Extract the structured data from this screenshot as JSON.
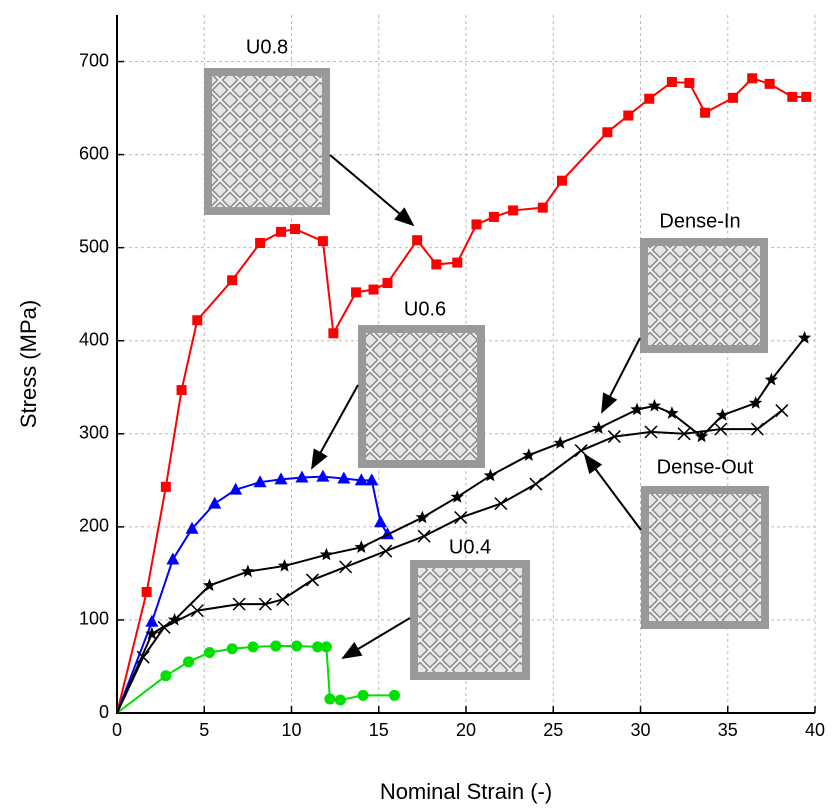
{
  "chart_data": {
    "type": "line",
    "x_label": "Nominal Strain (-)",
    "y_label": "Stress (MPa)",
    "xlim": [
      0,
      40
    ],
    "ylim": [
      0,
      750
    ],
    "xticks": [
      0,
      5,
      10,
      15,
      20,
      25,
      30,
      35,
      40
    ],
    "yticks": [
      0,
      100,
      200,
      300,
      400,
      500,
      600,
      700
    ],
    "grid": true,
    "series": [
      {
        "name": "U0.8",
        "color": "#ff0000",
        "marker": "square",
        "x": [
          0,
          1.7,
          2.8,
          3.7,
          4.6,
          6.6,
          8.2,
          9.4,
          10.2,
          11.8,
          12.4,
          13.7,
          14.7,
          15.5,
          17.2,
          18.3,
          19.5,
          20.6,
          21.6,
          22.7,
          24.4,
          25.5,
          28.1,
          29.3,
          30.5,
          31.8,
          32.8,
          33.7,
          35.3,
          36.4,
          37.4,
          38.7,
          39.5
        ],
        "values": [
          0,
          130,
          243,
          347,
          422,
          465,
          505,
          517,
          520,
          507,
          408,
          452,
          455,
          462,
          508,
          482,
          484,
          525,
          533,
          540,
          543,
          572,
          624,
          642,
          660,
          678,
          677,
          645,
          661,
          682,
          676,
          662,
          662
        ]
      },
      {
        "name": "U0.6",
        "color": "#0000ff",
        "marker": "triangle",
        "x": [
          0,
          2,
          3.2,
          4.3,
          5.6,
          6.8,
          8.2,
          9.4,
          10.6,
          11.8,
          13,
          14,
          14.6,
          15.1,
          15.5
        ],
        "values": [
          0,
          98,
          165,
          198,
          225,
          240,
          248,
          251,
          253,
          254,
          252,
          250,
          250,
          205,
          192
        ]
      },
      {
        "name": "U0.4",
        "color": "#00e000",
        "marker": "circle",
        "x": [
          0,
          2.8,
          4.1,
          5.3,
          6.6,
          7.8,
          9.1,
          10.3,
          11.5,
          12,
          12.2,
          12.8,
          14.1,
          15.9
        ],
        "values": [
          0,
          40,
          55,
          65,
          69,
          71,
          72,
          72,
          71,
          71,
          15,
          14,
          19,
          19
        ]
      },
      {
        "name": "Dense-In",
        "color": "#000000",
        "marker": "star",
        "x": [
          0,
          2,
          3.3,
          5.3,
          7.5,
          9.6,
          12,
          14,
          17.5,
          19.5,
          21.4,
          23.6,
          25.4,
          27.6,
          29.8,
          30.8,
          31.8,
          33.5,
          34.7,
          36.6,
          37.5,
          39.4
        ],
        "values": [
          0,
          85,
          100,
          137,
          152,
          158,
          170,
          178,
          210,
          232,
          255,
          277,
          290,
          306,
          326,
          330,
          322,
          297,
          320,
          333,
          358,
          403
        ]
      },
      {
        "name": "Dense-Out",
        "color": "#000000",
        "marker": "x",
        "x": [
          0,
          1.5,
          2.7,
          4.6,
          7,
          8.5,
          9.5,
          11.2,
          13.1,
          15.4,
          17.6,
          19.7,
          22,
          24,
          26.6,
          28.5,
          30.6,
          32.5,
          34.6,
          36.7,
          38.1
        ],
        "values": [
          0,
          60,
          92,
          110,
          117,
          117,
          122,
          143,
          157,
          174,
          190,
          210,
          225,
          246,
          282,
          297,
          302,
          300,
          305,
          305,
          325
        ]
      }
    ]
  }
}
